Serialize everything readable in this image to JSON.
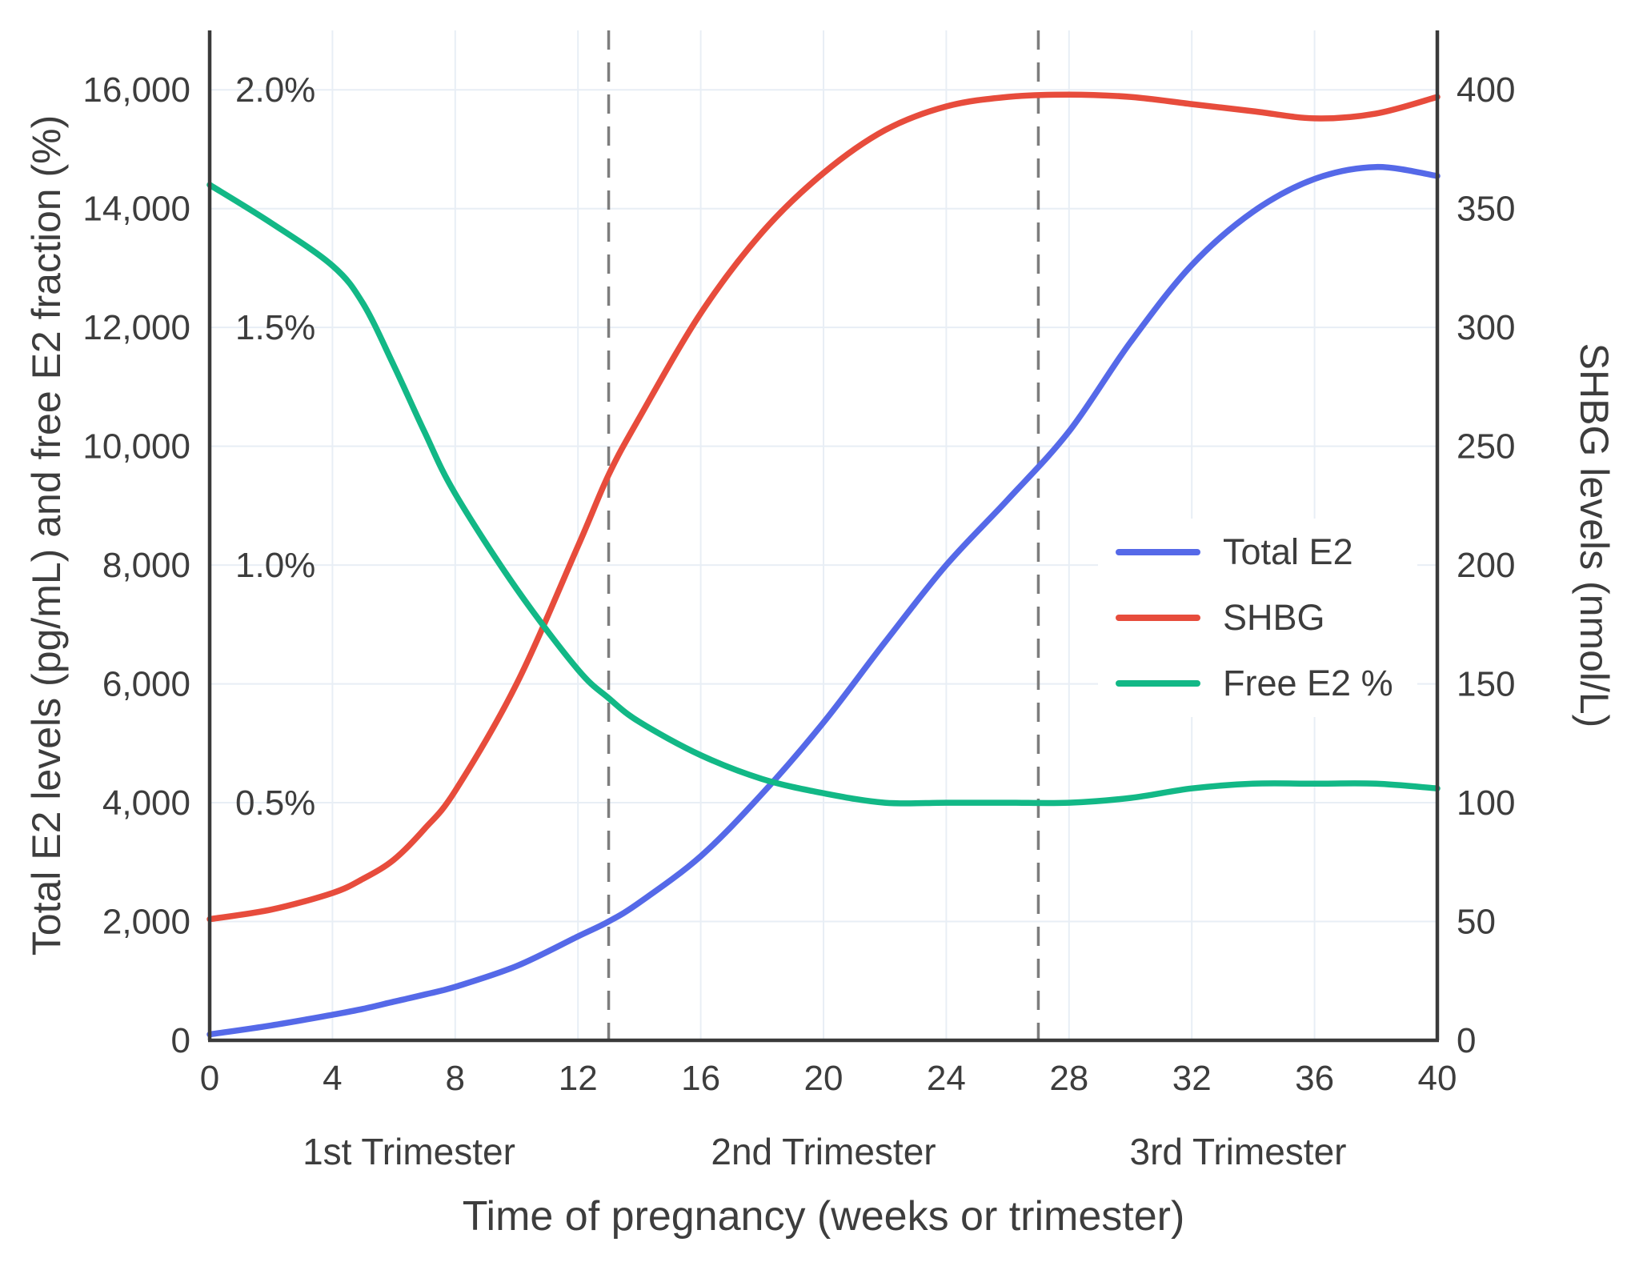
{
  "axes": {
    "x": {
      "title": "Time of pregnancy (weeks or trimester)",
      "ticks": [
        0,
        4,
        8,
        12,
        16,
        20,
        24,
        28,
        32,
        36,
        40
      ],
      "tick_labels": [
        "0",
        "4",
        "8",
        "12",
        "16",
        "20",
        "24",
        "28",
        "32",
        "36",
        "40"
      ],
      "range": [
        0,
        40
      ],
      "trimester_labels": [
        "1st Trimester",
        "2nd Trimester",
        "3rd Trimester"
      ],
      "trimester_boundaries_weeks": [
        13,
        27
      ]
    },
    "left": {
      "title": "Total E2 levels (pg/mL) and free E2 fraction (%)",
      "ticks": [
        0,
        2000,
        4000,
        6000,
        8000,
        10000,
        12000,
        14000,
        16000
      ],
      "tick_labels": [
        "0",
        "2,000",
        "4,000",
        "6,000",
        "8,000",
        "10,000",
        "12,000",
        "14,000",
        "16,000"
      ],
      "range": [
        0,
        17000
      ],
      "percent_labels": [
        {
          "text": "0.5%",
          "value": 4000
        },
        {
          "text": "1.0%",
          "value": 8000
        },
        {
          "text": "1.5%",
          "value": 12000
        },
        {
          "text": "2.0%",
          "value": 16000
        }
      ]
    },
    "right": {
      "title": "SHBG levels (nmol/L)",
      "ticks": [
        0,
        50,
        100,
        150,
        200,
        250,
        300,
        350,
        400
      ],
      "tick_labels": [
        "0",
        "50",
        "100",
        "150",
        "200",
        "250",
        "300",
        "350",
        "400"
      ],
      "range": [
        0,
        425
      ]
    }
  },
  "legend": {
    "items": [
      {
        "label": "Total E2",
        "color": "#5569e8"
      },
      {
        "label": "SHBG",
        "color": "#e74c3c"
      },
      {
        "label": "Free E2 %",
        "color": "#12b886"
      }
    ]
  },
  "styles": {
    "grid_color": "#e8eef5",
    "axis_color": "#3a3a3a",
    "boundary_color": "#7d7d7d",
    "text_color": "#3d3d3d",
    "background": "#ffffff"
  },
  "chart_data": {
    "type": "line",
    "title": "",
    "xlabel": "Time of pregnancy (weeks or trimester)",
    "ylabel_left": "Total E2 levels (pg/mL) and free E2 fraction (%)",
    "ylabel_right": "SHBG levels (nmol/L)",
    "xlim": [
      0,
      40
    ],
    "left_ylim": [
      0,
      17000
    ],
    "right_ylim": [
      0,
      425
    ],
    "grid": true,
    "legend_position": "center-right",
    "trimester_boundaries_weeks": [
      13,
      27
    ],
    "x_weeks": [
      0,
      2,
      4,
      5,
      6,
      7,
      8,
      10,
      12,
      13,
      14,
      16,
      18,
      20,
      22,
      24,
      26,
      28,
      30,
      32,
      34,
      36,
      38,
      40
    ],
    "series": [
      {
        "name": "Total E2",
        "axis": "left",
        "units": "pg/mL",
        "color": "#5569e8",
        "values": [
          100,
          250,
          430,
          530,
          650,
          770,
          900,
          1250,
          1750,
          2000,
          2320,
          3100,
          4150,
          5350,
          6700,
          8000,
          9100,
          10250,
          11750,
          13050,
          13950,
          14500,
          14700,
          14550
        ]
      },
      {
        "name": "SHBG",
        "axis": "right",
        "units": "nmol/L",
        "color": "#e74c3c",
        "values": [
          51,
          55,
          62,
          68,
          76,
          89,
          105,
          150,
          208,
          238,
          262,
          306,
          340,
          365,
          383,
          393,
          397,
          398,
          397,
          394,
          391,
          388,
          390,
          397
        ]
      },
      {
        "name": "Free E2 %",
        "axis": "left-percent",
        "units": "%",
        "percent_to_left_axis_factor": 8000,
        "color": "#12b886",
        "values": [
          1.8,
          1.72,
          1.63,
          1.55,
          1.42,
          1.28,
          1.15,
          0.95,
          0.78,
          0.72,
          0.67,
          0.6,
          0.55,
          0.52,
          0.5,
          0.5,
          0.5,
          0.5,
          0.51,
          0.53,
          0.54,
          0.54,
          0.54,
          0.53
        ]
      }
    ]
  }
}
